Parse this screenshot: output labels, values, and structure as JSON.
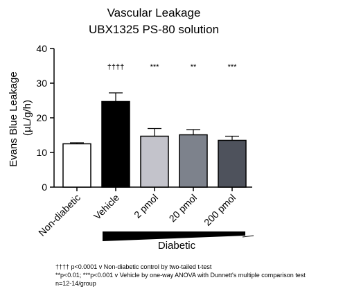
{
  "chart_data": {
    "type": "bar",
    "title": "Vascular Leakage",
    "subtitle": "UBX1325 PS-80 solution",
    "ylabel_line1": "Evans Blue Leakage",
    "ylabel_line2": "(µL/g/h)",
    "xlabel": "",
    "ylim": [
      0,
      40
    ],
    "yticks": [
      0,
      10,
      20,
      30,
      40
    ],
    "categories": [
      "Non-diabetic",
      "Vehicle",
      "2 pmol",
      "20 pmol",
      "200 pmol"
    ],
    "values": [
      12.5,
      24.7,
      14.7,
      15.1,
      13.5
    ],
    "errors": [
      0.3,
      2.5,
      2.2,
      1.5,
      1.2
    ],
    "bar_colors": [
      "#ffffff",
      "#000000",
      "#c3c3cb",
      "#7d828c",
      "#4e525c"
    ],
    "significance": [
      "",
      "††††",
      "***",
      "**",
      "***"
    ],
    "group_label": "Diabetic",
    "grid": false,
    "legend": "none"
  },
  "footnotes": {
    "line1": "†††† p<0.0001 v Non-diabetic control by two-tailed t-test",
    "line2": "**p<0.01; ***p<0.001 v Vehicle by one-way ANOVA with Dunnett's multiple comparison test",
    "line3": "n=12-14/group"
  }
}
